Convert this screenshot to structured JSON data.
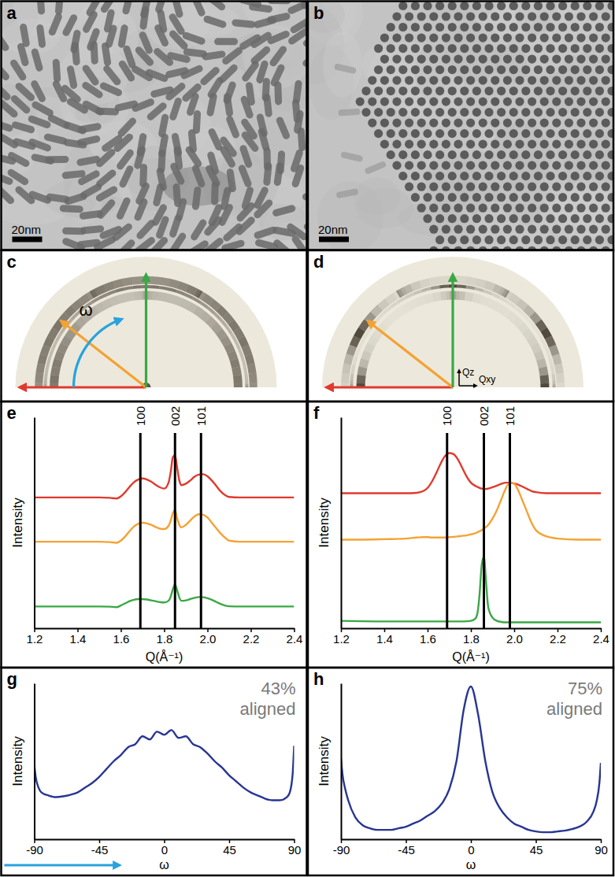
{
  "chart_data": [
    {
      "type": "image",
      "label": "a",
      "marker": "rod",
      "scale_bar": "20nm"
    },
    {
      "type": "image",
      "label": "b",
      "marker": "dot",
      "scale_bar": "20nm"
    },
    {
      "type": "pattern",
      "label": "c",
      "annotations": [
        "ω"
      ]
    },
    {
      "type": "pattern",
      "label": "d",
      "annotations": [
        "Qz",
        "Qxy"
      ]
    },
    {
      "type": "line",
      "label": "e",
      "x_label": "Q(Å⁻¹)",
      "y_label": "Intensity",
      "xlim": [
        1.2,
        2.4
      ],
      "xticks": [
        1.2,
        1.4,
        1.6,
        1.8,
        {
          "value": 2,
          "label": "2.0"
        },
        2.2,
        2.4
      ],
      "ylim": [
        0,
        10
      ],
      "tick_labels": "x",
      "peaks": [
        {
          "label": "100",
          "value": 1.69
        },
        {
          "label": "002",
          "value": 1.85
        },
        {
          "label": "101",
          "value": 1.97
        }
      ],
      "x": [
        1.2,
        1.3,
        1.4,
        1.5,
        1.55,
        1.58,
        1.6,
        1.62,
        1.64,
        1.66,
        1.68,
        1.7,
        1.72,
        1.74,
        1.76,
        1.78,
        1.8,
        1.82,
        1.83,
        1.84,
        1.85,
        1.86,
        1.87,
        1.88,
        1.9,
        1.92,
        1.94,
        1.96,
        1.98,
        2.0,
        2.02,
        2.04,
        2.06,
        2.08,
        2.1,
        2.15,
        2.2,
        2.3,
        2.4
      ],
      "series": [
        {
          "color": "#e03a2e",
          "values": [
            6.2,
            6.2,
            6.2,
            6.2,
            6.18,
            6.15,
            6.25,
            6.45,
            6.7,
            6.92,
            7.05,
            7.1,
            7.05,
            6.95,
            6.8,
            6.68,
            6.62,
            6.9,
            7.4,
            8.1,
            8.2,
            7.6,
            7.0,
            6.78,
            6.85,
            7.0,
            7.18,
            7.28,
            7.3,
            7.2,
            7.0,
            6.75,
            6.5,
            6.32,
            6.22,
            6.2,
            6.2,
            6.2,
            6.2
          ]
        },
        {
          "color": "#f4a234",
          "values": [
            4.1,
            4.1,
            4.1,
            4.1,
            4.08,
            4.05,
            4.15,
            4.35,
            4.6,
            4.82,
            4.95,
            5.0,
            4.97,
            4.9,
            4.8,
            4.72,
            4.7,
            4.85,
            5.1,
            5.45,
            5.6,
            5.2,
            4.9,
            4.78,
            4.9,
            5.1,
            5.3,
            5.4,
            5.38,
            5.25,
            5.0,
            4.75,
            4.5,
            4.3,
            4.15,
            4.1,
            4.1,
            4.1,
            4.1
          ]
        },
        {
          "color": "#3aa845",
          "values": [
            1.03,
            1.03,
            1.03,
            1.03,
            1.02,
            1.0,
            1.08,
            1.18,
            1.28,
            1.35,
            1.38,
            1.38,
            1.36,
            1.32,
            1.28,
            1.24,
            1.22,
            1.3,
            1.5,
            1.85,
            2.07,
            1.8,
            1.45,
            1.3,
            1.32,
            1.38,
            1.44,
            1.48,
            1.47,
            1.42,
            1.35,
            1.25,
            1.15,
            1.08,
            1.04,
            1.03,
            1.03,
            1.03,
            1.03
          ]
        }
      ]
    },
    {
      "type": "line",
      "label": "f",
      "x_label": "Q(Å⁻¹)",
      "y_label": "Intensity",
      "xlim": [
        1.2,
        2.4
      ],
      "xticks": [
        1.2,
        1.4,
        1.6,
        1.8,
        {
          "value": 2,
          "label": "2.0"
        },
        2.2,
        2.4
      ],
      "ylim": [
        0,
        10
      ],
      "tick_labels": "x",
      "peaks": [
        {
          "label": "100",
          "value": 1.69
        },
        {
          "label": "002",
          "value": 1.86
        },
        {
          "label": "101",
          "value": 1.98
        }
      ],
      "x": [
        1.2,
        1.3,
        1.4,
        1.5,
        1.55,
        1.58,
        1.6,
        1.62,
        1.64,
        1.66,
        1.68,
        1.7,
        1.72,
        1.74,
        1.76,
        1.78,
        1.8,
        1.82,
        1.83,
        1.84,
        1.85,
        1.86,
        1.87,
        1.88,
        1.9,
        1.92,
        1.94,
        1.96,
        1.98,
        2.0,
        2.02,
        2.04,
        2.06,
        2.08,
        2.1,
        2.15,
        2.2,
        2.3,
        2.4
      ],
      "series": [
        {
          "color": "#e03a2e",
          "values": [
            6.4,
            6.4,
            6.4,
            6.4,
            6.42,
            6.5,
            6.65,
            6.95,
            7.35,
            7.8,
            8.15,
            8.3,
            8.25,
            8.0,
            7.6,
            7.2,
            6.9,
            6.75,
            6.7,
            6.65,
            6.62,
            6.6,
            6.6,
            6.62,
            6.68,
            6.76,
            6.84,
            6.9,
            6.9,
            6.86,
            6.8,
            6.7,
            6.6,
            6.5,
            6.45,
            6.4,
            6.4,
            6.4,
            6.4
          ]
        },
        {
          "color": "#f4a234",
          "values": [
            4.2,
            4.2,
            4.22,
            4.25,
            4.3,
            4.32,
            4.32,
            4.3,
            4.3,
            4.3,
            4.3,
            4.32,
            4.33,
            4.35,
            4.38,
            4.4,
            4.45,
            4.5,
            4.55,
            4.6,
            4.65,
            4.72,
            4.8,
            4.9,
            5.2,
            5.6,
            6.1,
            6.6,
            6.9,
            6.85,
            6.5,
            6.0,
            5.5,
            5.0,
            4.65,
            4.35,
            4.25,
            4.2,
            4.2
          ]
        },
        {
          "color": "#3aa845",
          "values": [
            0.35,
            0.33,
            0.32,
            0.32,
            0.32,
            0.32,
            0.32,
            0.32,
            0.32,
            0.32,
            0.32,
            0.32,
            0.32,
            0.32,
            0.32,
            0.33,
            0.35,
            0.45,
            0.7,
            1.6,
            3.0,
            3.4,
            2.2,
            1.0,
            0.5,
            0.35,
            0.3,
            0.28,
            0.28,
            0.28,
            0.28,
            0.28,
            0.28,
            0.28,
            0.28,
            0.28,
            0.28,
            0.28,
            0.28
          ]
        }
      ]
    },
    {
      "type": "line",
      "label": "g",
      "x_label": "ω",
      "y_label": "Intensity",
      "xlim": [
        -90,
        90
      ],
      "xticks": [
        -90,
        -45,
        0,
        45,
        90
      ],
      "ylim": [
        0,
        10
      ],
      "tick_labels": "x",
      "annotation": "43% aligned",
      "color": "#283593",
      "x": [
        -90,
        -89,
        -87,
        -85,
        -80,
        -75,
        -70,
        -65,
        -60,
        -55,
        -50,
        -45,
        -40,
        -35,
        -30,
        -25,
        -20,
        -15,
        -10,
        -5,
        0,
        5,
        10,
        15,
        20,
        25,
        30,
        35,
        40,
        45,
        50,
        55,
        60,
        65,
        70,
        75,
        80,
        85,
        87,
        89,
        90
      ],
      "values": [
        4.8,
        4.0,
        3.3,
        3.0,
        2.8,
        2.7,
        2.75,
        2.85,
        3.0,
        3.3,
        3.6,
        4.0,
        4.5,
        5.0,
        5.4,
        5.9,
        6.1,
        6.6,
        6.4,
        6.9,
        6.7,
        7.0,
        6.5,
        6.6,
        6.1,
        5.9,
        5.5,
        5.0,
        4.6,
        4.1,
        3.7,
        3.3,
        3.0,
        2.8,
        2.6,
        2.5,
        2.5,
        2.7,
        3.0,
        4.2,
        6.0
      ]
    },
    {
      "type": "line",
      "label": "h",
      "x_label": "ω",
      "y_label": "Intensity",
      "xlim": [
        -90,
        90
      ],
      "xticks": [
        -90,
        -45,
        0,
        45,
        90
      ],
      "ylim": [
        0,
        10
      ],
      "tick_labels": "x",
      "annotation": "75% aligned",
      "color": "#283593",
      "x": [
        -90,
        -89,
        -87,
        -85,
        -80,
        -75,
        -70,
        -65,
        -60,
        -55,
        -50,
        -45,
        -40,
        -35,
        -30,
        -25,
        -20,
        -15,
        -10,
        -5,
        0,
        5,
        10,
        15,
        20,
        25,
        30,
        35,
        40,
        45,
        50,
        55,
        60,
        65,
        70,
        75,
        80,
        85,
        87,
        89,
        90
      ],
      "values": [
        5.2,
        4.2,
        3.2,
        2.5,
        1.4,
        0.9,
        0.7,
        0.6,
        0.6,
        0.6,
        0.7,
        0.8,
        1.0,
        1.2,
        1.5,
        1.8,
        2.3,
        3.2,
        5.0,
        8.3,
        9.8,
        8.0,
        5.0,
        3.0,
        2.0,
        1.4,
        1.0,
        0.8,
        0.6,
        0.5,
        0.45,
        0.45,
        0.5,
        0.55,
        0.65,
        0.8,
        1.1,
        1.8,
        2.4,
        3.6,
        4.9
      ]
    }
  ]
}
